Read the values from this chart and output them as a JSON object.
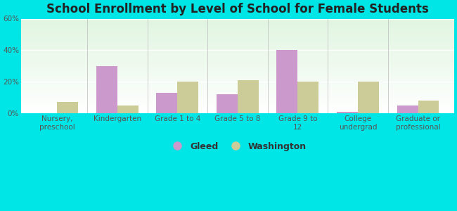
{
  "title": "School Enrollment by Level of School for Female Students",
  "categories": [
    "Nursery,\npreschool",
    "Kindergarten",
    "Grade 1 to 4",
    "Grade 5 to 8",
    "Grade 9 to\n12",
    "College\nundergrad",
    "Graduate or\nprofessional"
  ],
  "gleed": [
    0,
    30,
    13,
    12,
    40,
    1,
    5
  ],
  "washington": [
    7,
    5,
    20,
    21,
    20,
    20,
    8
  ],
  "gleed_color": "#cc99cc",
  "washington_color": "#cccc99",
  "ylim": [
    0,
    60
  ],
  "yticks": [
    0,
    20,
    40,
    60
  ],
  "ytick_labels": [
    "0%",
    "20%",
    "40%",
    "60%"
  ],
  "bg_color": "#00e5e5",
  "legend_gleed": "Gleed",
  "legend_washington": "Washington",
  "title_fontsize": 12,
  "tick_fontsize": 7.5,
  "legend_fontsize": 9,
  "bar_width": 0.35
}
